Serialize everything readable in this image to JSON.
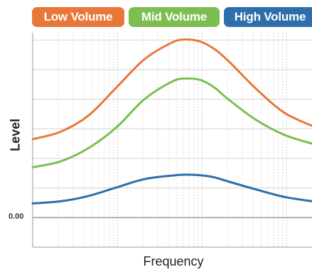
{
  "chart_data": {
    "type": "line",
    "title": "",
    "xlabel": "Frequency",
    "ylabel": "Level",
    "y_tick_labels": [
      "0.00"
    ],
    "x_scale": "log",
    "x_range": [
      0,
      1
    ],
    "y_range": [
      -1,
      6.25
    ],
    "grid": true,
    "legend_placement": "top",
    "series": [
      {
        "name": "Low Volume",
        "color": "#e8773a",
        "x": [
          0,
          0.1,
          0.2,
          0.3,
          0.4,
          0.5,
          0.55,
          0.6,
          0.65,
          0.7,
          0.8,
          0.9,
          1.0
        ],
        "y": [
          2.65,
          2.9,
          3.45,
          4.4,
          5.35,
          5.92,
          6.02,
          5.95,
          5.7,
          5.3,
          4.35,
          3.55,
          3.1
        ]
      },
      {
        "name": "Mid Volume",
        "color": "#7cbe52",
        "x": [
          0,
          0.1,
          0.2,
          0.3,
          0.4,
          0.5,
          0.55,
          0.6,
          0.65,
          0.7,
          0.8,
          0.9,
          1.0
        ],
        "y": [
          1.7,
          1.9,
          2.35,
          3.05,
          4.0,
          4.6,
          4.7,
          4.65,
          4.4,
          4.0,
          3.3,
          2.8,
          2.5
        ]
      },
      {
        "name": "High Volume",
        "color": "#2e6eaa",
        "x": [
          0,
          0.1,
          0.2,
          0.3,
          0.4,
          0.5,
          0.55,
          0.6,
          0.65,
          0.7,
          0.8,
          0.9,
          1.0
        ],
        "y": [
          0.48,
          0.55,
          0.73,
          1.02,
          1.3,
          1.42,
          1.45,
          1.43,
          1.36,
          1.22,
          0.95,
          0.7,
          0.55
        ]
      }
    ]
  }
}
